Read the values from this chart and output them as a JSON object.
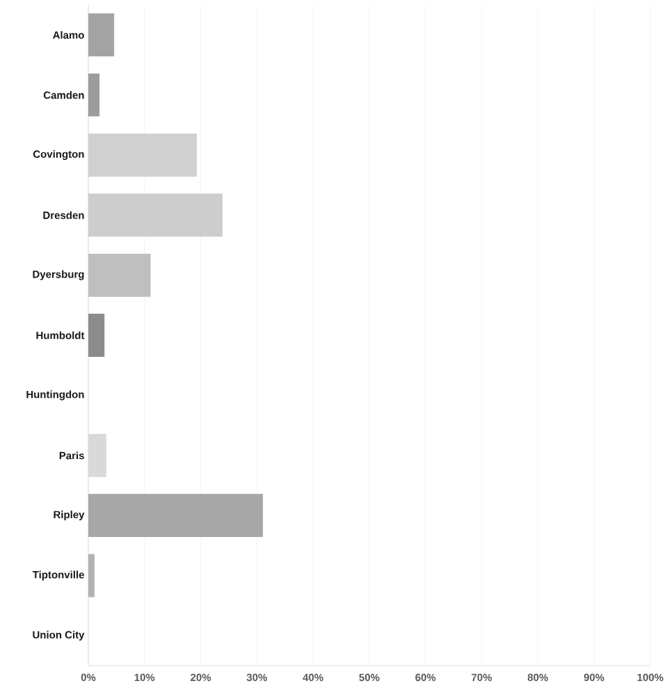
{
  "chart_data": {
    "type": "bar",
    "orientation": "horizontal",
    "categories": [
      "Alamo",
      "Camden",
      "Covington",
      "Dresden",
      "Dyersburg",
      "Humboldt",
      "Huntingdon",
      "Paris",
      "Ripley",
      "Tiptonville",
      "Union City"
    ],
    "values": [
      4.6,
      2.0,
      19.3,
      23.9,
      11.1,
      2.9,
      0,
      3.2,
      31.1,
      1.1,
      0
    ],
    "colors": [
      "#a3a3a3",
      "#9c9c9c",
      "#d0d0d0",
      "#cdcdcd",
      "#bfbfbf",
      "#8c8c8c",
      "#c0c0c0",
      "#d9d9d9",
      "#a8a8a8",
      "#b2b2b2",
      "#c0c0c0"
    ],
    "xlim": [
      0,
      100
    ],
    "xticks": [
      {
        "value": 0,
        "label": "0%"
      },
      {
        "value": 10,
        "label": "10%"
      },
      {
        "value": 20,
        "label": "20%"
      },
      {
        "value": 30,
        "label": "30%"
      },
      {
        "value": 40,
        "label": "40%"
      },
      {
        "value": 50,
        "label": "50%"
      },
      {
        "value": 60,
        "label": "60%"
      },
      {
        "value": 70,
        "label": "70%"
      },
      {
        "value": 80,
        "label": "80%"
      },
      {
        "value": 90,
        "label": "90%"
      },
      {
        "value": 100,
        "label": "100%"
      }
    ],
    "grid": "x"
  }
}
